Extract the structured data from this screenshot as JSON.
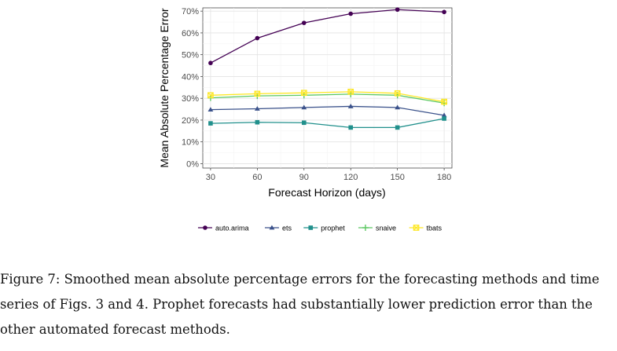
{
  "chart_data": {
    "type": "line",
    "xlabel": "Forecast Horizon (days)",
    "ylabel": "Mean Absolute Percentage Error",
    "x": [
      30,
      60,
      90,
      120,
      150,
      180
    ],
    "x_ticks": [
      "30",
      "60",
      "90",
      "120",
      "150",
      "180"
    ],
    "xlim": [
      25,
      185
    ],
    "ylim": [
      -0.02,
      0.715
    ],
    "y_ticks": [
      0,
      0.1,
      0.2,
      0.3,
      0.4,
      0.5,
      0.6,
      0.7
    ],
    "y_tick_labels": [
      "0%",
      "10%",
      "20%",
      "30%",
      "40%",
      "50%",
      "60%",
      "70%"
    ],
    "grid": true,
    "legend_position": "bottom",
    "series": [
      {
        "name": "auto.arima",
        "color": "#440154",
        "marker": "circle",
        "values": [
          0.462,
          0.576,
          0.646,
          0.688,
          0.707,
          0.696
        ]
      },
      {
        "name": "ets",
        "color": "#3b528b",
        "marker": "triangle",
        "values": [
          0.248,
          0.252,
          0.258,
          0.263,
          0.258,
          0.222
        ]
      },
      {
        "name": "prophet",
        "color": "#21908c",
        "marker": "square",
        "values": [
          0.185,
          0.19,
          0.188,
          0.166,
          0.166,
          0.207
        ]
      },
      {
        "name": "snaive",
        "color": "#5dc863",
        "marker": "plus",
        "values": [
          0.302,
          0.311,
          0.314,
          0.319,
          0.314,
          0.278
        ]
      },
      {
        "name": "tbats",
        "color": "#fde725",
        "marker": "cross-square",
        "values": [
          0.314,
          0.321,
          0.325,
          0.33,
          0.323,
          0.284
        ]
      }
    ]
  },
  "caption": "Figure 7: Smoothed mean absolute percentage errors for the forecasting methods and time series of Figs. 3 and 4. Prophet forecasts had substantially lower prediction error than the other automated forecast methods."
}
